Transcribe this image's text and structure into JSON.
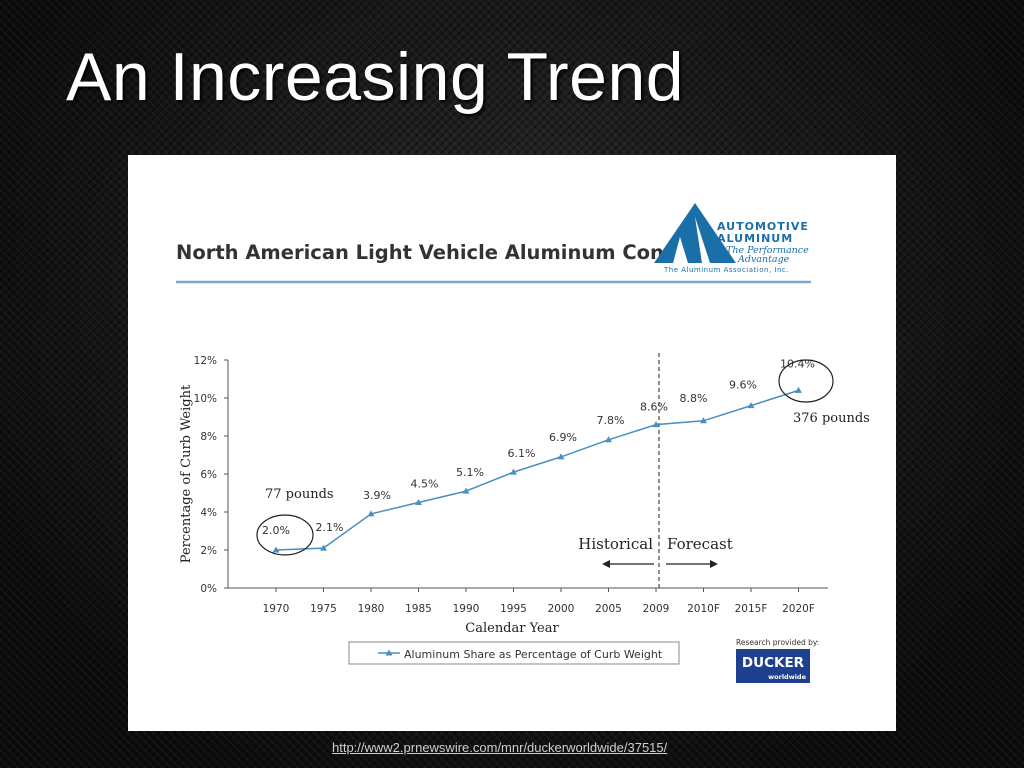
{
  "slide": {
    "title": "An Increasing Trend",
    "source_link": "http://www2.prnewswire.com/mnr/duckerworldwide/37515/"
  },
  "logo": {
    "line1": "AUTOMOTIVE",
    "line2": "ALUMINUM",
    "line3": "The Performance",
    "line4": "Advantage",
    "line5": "The Aluminum Association, Inc.",
    "color": "#1a6fa8"
  },
  "ducker": {
    "caption": "Research provided by:",
    "name": "DUCKER",
    "sub": "worldwide",
    "color": "#1f3f8f"
  },
  "chart_data": {
    "type": "line",
    "title": "North American Light Vehicle Aluminum Content",
    "xlabel": "Calendar Year",
    "ylabel": "Percentage of Curb Weight",
    "ylim": [
      0,
      12
    ],
    "yticks": [
      "0%",
      "2%",
      "4%",
      "6%",
      "8%",
      "10%",
      "12%"
    ],
    "categories": [
      "1970",
      "1975",
      "1980",
      "1985",
      "1990",
      "1995",
      "2000",
      "2005",
      "2009",
      "2010F",
      "2015F",
      "2020F"
    ],
    "series": [
      {
        "name": "Aluminum Share as Percentage of Curb Weight",
        "values": [
          2.0,
          2.1,
          3.9,
          4.5,
          5.1,
          6.1,
          6.9,
          7.8,
          8.6,
          8.8,
          9.6,
          10.4
        ],
        "labels": [
          "2.0%",
          "2.1%",
          "3.9%",
          "4.5%",
          "5.1%",
          "6.1%",
          "6.9%",
          "7.8%",
          "8.6%",
          "8.8%",
          "9.6%",
          "10.4%"
        ],
        "color": "#4a8fbf"
      }
    ],
    "annotations": {
      "start_pounds": "77 pounds",
      "end_pounds": "376 pounds",
      "historical": "Historical",
      "forecast": "Forecast"
    },
    "title_color": "#333333",
    "rule_color": "#7fa6c8",
    "grid": false,
    "legend": "bottom"
  }
}
